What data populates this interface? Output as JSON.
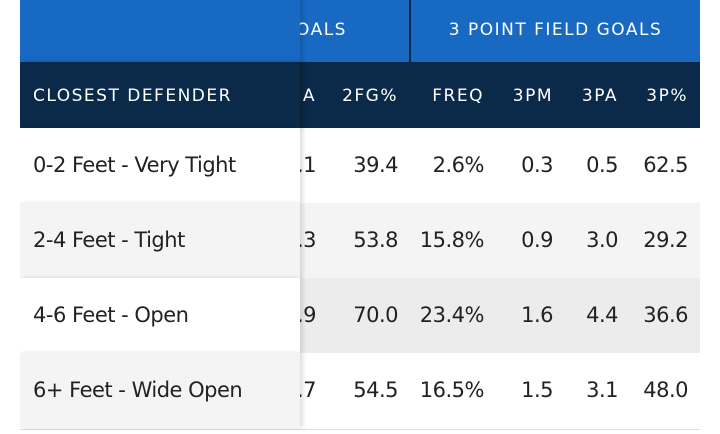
{
  "header": {
    "groups": [
      "OALS",
      "3 POINT FIELD GOALS"
    ]
  },
  "table": {
    "columns": [
      "CLOSEST DEFENDER",
      "A",
      "2FG%",
      "FREQ",
      "3PM",
      "3PA",
      "3P%"
    ],
    "rows": [
      [
        "0-2 Feet - Very Tight",
        ".1",
        "39.4",
        "2.6%",
        "0.3",
        "0.5",
        "62.5"
      ],
      [
        "2-4 Feet - Tight",
        ".3",
        "53.8",
        "15.8%",
        "0.9",
        "3.0",
        "29.2"
      ],
      [
        "4-6 Feet - Open",
        ".9",
        "70.0",
        "23.4%",
        "1.6",
        "4.4",
        "36.6"
      ],
      [
        "6+ Feet - Wide Open",
        ".7",
        "54.5",
        "16.5%",
        "1.5",
        "3.1",
        "48.0"
      ]
    ]
  }
}
